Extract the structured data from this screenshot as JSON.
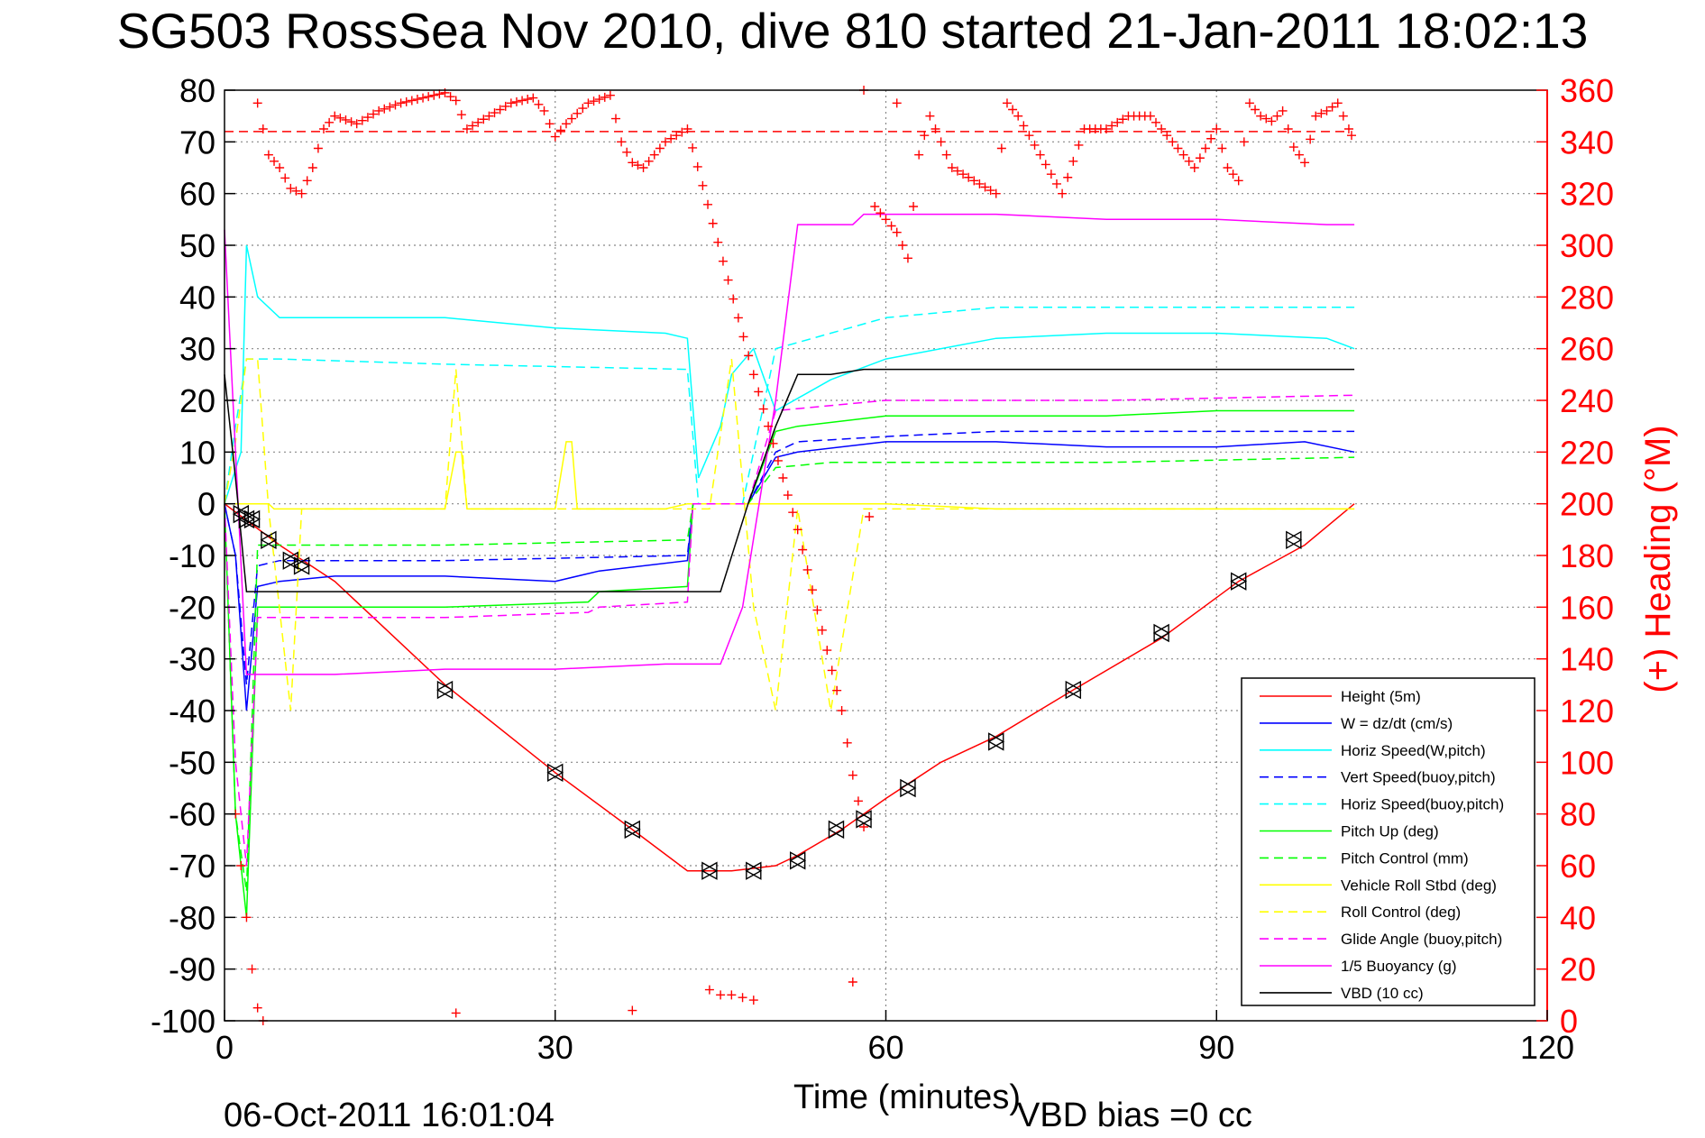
{
  "chart_data": {
    "type": "line",
    "title": "SG503 RossSea Nov 2010, dive 810 started 21-Jan-2011 18:02:13",
    "xlabel": "Time (minutes)",
    "ylabel": "",
    "y2label": "(+) Heading (°M)",
    "xlim": [
      0,
      120
    ],
    "ylim": [
      -100,
      80
    ],
    "y2lim": [
      0,
      360
    ],
    "x_ticks": [
      "0",
      "30",
      "60",
      "90",
      "120"
    ],
    "y_ticks": [
      "80",
      "70",
      "60",
      "50",
      "40",
      "30",
      "20",
      "10",
      "0",
      "-10",
      "-20",
      "-30",
      "-40",
      "-50",
      "-60",
      "-70",
      "-80",
      "-90",
      "-100"
    ],
    "y2_ticks": [
      "360",
      "340",
      "320",
      "300",
      "280",
      "260",
      "240",
      "220",
      "200",
      "180",
      "160",
      "140",
      "120",
      "100",
      "80",
      "60",
      "40",
      "20",
      "0"
    ],
    "grid": true,
    "legend_position": "bottom-right",
    "heading_target": 344,
    "series": [
      {
        "name": "Height (5m)",
        "color": "#ff0000",
        "style": "solid",
        "x": [
          0,
          5,
          10,
          20,
          30,
          37,
          42,
          46,
          50,
          52,
          56,
          60,
          65,
          70,
          77,
          85,
          92,
          98,
          102.5
        ],
        "y": [
          0,
          -8,
          -15,
          -35,
          -52,
          -63,
          -71,
          -71,
          -70,
          -68,
          -63,
          -57,
          -50,
          -45,
          -36,
          -26,
          -15,
          -8,
          0
        ]
      },
      {
        "name": "W = dz/dt (cm/s)",
        "color": "#0000ff",
        "style": "solid",
        "x": [
          0,
          1,
          2,
          3,
          5,
          10,
          20,
          30,
          34,
          42,
          42.5,
          47.5,
          50,
          52,
          60,
          70,
          80,
          90,
          98,
          102.5
        ],
        "y": [
          0,
          -10,
          -40,
          -16,
          -15,
          -14,
          -14,
          -15,
          -13,
          -11,
          0,
          0,
          9,
          10,
          12,
          12,
          11,
          11,
          12,
          10
        ]
      },
      {
        "name": "Horiz Speed(W,pitch)",
        "color": "#00ffff",
        "style": "solid",
        "x": [
          0,
          1.5,
          2,
          3,
          5,
          10,
          20,
          30,
          40,
          42,
          43,
          45,
          46,
          48,
          50,
          55,
          60,
          70,
          80,
          90,
          100,
          102.5
        ],
        "y": [
          0,
          10,
          50,
          40,
          36,
          36,
          36,
          34,
          33,
          32,
          5,
          15,
          25,
          30,
          18,
          24,
          28,
          32,
          33,
          33,
          32,
          30
        ]
      },
      {
        "name": "Vert Speed(buoy,pitch)",
        "color": "#0000ff",
        "style": "dashed",
        "x": [
          0,
          1,
          2,
          3,
          5,
          20,
          42,
          42.5,
          47.5,
          50,
          52,
          60,
          70,
          80,
          90,
          102.5
        ],
        "y": [
          0,
          -10,
          -35,
          -12,
          -11,
          -11,
          -10,
          0,
          0,
          10,
          12,
          13,
          14,
          14,
          14,
          14
        ]
      },
      {
        "name": "Horiz Speed(buoy,pitch)",
        "color": "#00ffff",
        "style": "dashed",
        "x": [
          0,
          1,
          2,
          3,
          5,
          20,
          42,
          43,
          47,
          50,
          60,
          70,
          80,
          90,
          102.5
        ],
        "y": [
          0,
          15,
          28,
          28,
          28,
          27,
          26,
          0,
          0,
          30,
          36,
          38,
          38,
          38,
          38
        ]
      },
      {
        "name": "Pitch Up (deg)",
        "color": "#00ff00",
        "style": "solid",
        "x": [
          0,
          1,
          2,
          3,
          5,
          20,
          33,
          34,
          42,
          42.5,
          47.5,
          50,
          52,
          60,
          70,
          80,
          90,
          102.5
        ],
        "y": [
          0,
          -60,
          -80,
          -20,
          -20,
          -20,
          -19,
          -17,
          -16,
          0,
          0,
          14,
          15,
          17,
          17,
          17,
          18,
          18
        ]
      },
      {
        "name": "Pitch Control (mm)",
        "color": "#00ff00",
        "style": "dashed",
        "x": [
          0,
          1,
          2,
          3,
          5,
          20,
          42,
          42.5,
          47.5,
          50,
          55,
          60,
          80,
          102.5
        ],
        "y": [
          0,
          -60,
          -75,
          -8,
          -8,
          -8,
          -7,
          0,
          0,
          7,
          8,
          8,
          8,
          9
        ]
      },
      {
        "name": "Vehicle Roll Stbd (deg)",
        "color": "#ffff00",
        "style": "solid",
        "x": [
          0,
          4,
          4.5,
          20,
          21,
          21.5,
          22,
          30,
          31,
          31.5,
          32,
          40,
          42,
          50,
          60,
          70,
          80,
          90,
          102.5
        ],
        "y": [
          0,
          0,
          -1,
          -1,
          10,
          10,
          -1,
          -1,
          12,
          12,
          -1,
          -1,
          0,
          0,
          0,
          -1,
          -1,
          -1,
          -1
        ]
      },
      {
        "name": "Roll Control (deg)",
        "color": "#ffff00",
        "style": "dashed",
        "x": [
          0,
          1,
          2,
          3,
          4,
          6,
          7,
          20,
          21,
          22,
          42,
          44,
          46,
          48,
          50,
          52,
          55,
          58,
          60,
          70,
          80,
          90,
          102.5
        ],
        "y": [
          0,
          12,
          28,
          28,
          -1,
          -40,
          -1,
          -1,
          26,
          -1,
          -1,
          -1,
          28,
          -20,
          -40,
          -1,
          -40,
          -1,
          -1,
          -1,
          -1,
          -1,
          -1
        ]
      },
      {
        "name": "Glide Angle (buoy,pitch)",
        "color": "#ff00ff",
        "style": "dashed",
        "x": [
          0,
          1,
          2,
          3,
          5,
          20,
          33,
          34,
          42,
          42.5,
          47.5,
          50,
          60,
          80,
          102.5
        ],
        "y": [
          0,
          -50,
          -70,
          -22,
          -22,
          -22,
          -21,
          -20,
          -19,
          0,
          0,
          18,
          20,
          20,
          21
        ]
      },
      {
        "name": "1/5 Buoyancy (g)",
        "color": "#ff00ff",
        "style": "solid",
        "x": [
          0,
          1,
          2,
          5,
          10,
          20,
          30,
          40,
          45,
          47,
          50,
          52,
          57,
          58,
          60,
          70,
          80,
          90,
          100,
          102.5
        ],
        "y": [
          53,
          10,
          -33,
          -33,
          -33,
          -32,
          -32,
          -31,
          -31,
          -20,
          20,
          54,
          54,
          56,
          56,
          56,
          55,
          55,
          54,
          54
        ]
      },
      {
        "name": "VBD (10 cc)",
        "color": "#000000",
        "style": "solid",
        "x": [
          0,
          1,
          2,
          3,
          10,
          20,
          30,
          42,
          45,
          47.5,
          50,
          52,
          55,
          58,
          60,
          70,
          80,
          90,
          102.5
        ],
        "y": [
          25,
          5,
          -17,
          -17,
          -17,
          -17,
          -17,
          -17,
          -17,
          0,
          15,
          25,
          25,
          26,
          26,
          26,
          26,
          26,
          26
        ]
      }
    ],
    "heading_points": {
      "name": "(+) Heading (°M)",
      "color": "#ff0000",
      "x": [
        3,
        4,
        5,
        6,
        7,
        8,
        9,
        10,
        12,
        14,
        16,
        18,
        20,
        21,
        22,
        24,
        26,
        28,
        29,
        30,
        31,
        33,
        35,
        36,
        37,
        38,
        40,
        42,
        48,
        52,
        56,
        57,
        58,
        59,
        60,
        61,
        62,
        63,
        64,
        65,
        66,
        68,
        70,
        71,
        72,
        74,
        76,
        78,
        80,
        82,
        84,
        86,
        88,
        90,
        91,
        92,
        93,
        94,
        95,
        96,
        97,
        98,
        99,
        100,
        101,
        102,
        102.5
      ],
      "y": [
        355,
        335,
        330,
        322,
        320,
        330,
        345,
        350,
        347,
        352,
        355,
        357,
        359,
        356,
        345,
        350,
        355,
        357,
        352,
        342,
        347,
        355,
        358,
        340,
        332,
        330,
        340,
        345,
        250,
        190,
        120,
        95,
        75,
        315,
        310,
        305,
        295,
        335,
        350,
        340,
        330,
        325,
        320,
        355,
        350,
        335,
        320,
        345,
        345,
        350,
        350,
        340,
        330,
        345,
        330,
        325,
        355,
        350,
        348,
        352,
        338,
        332,
        350,
        352,
        355,
        345,
        340
      ]
    },
    "heading_scatter": {
      "x": [
        1,
        1.5,
        2,
        2.5,
        3,
        3.5,
        44,
        45,
        46,
        47,
        48,
        21,
        37,
        57,
        58,
        61
      ],
      "y": [
        80,
        60,
        40,
        20,
        5,
        0,
        12,
        10,
        10,
        9,
        8,
        3,
        4,
        15,
        360,
        355
      ]
    },
    "markers": {
      "x": [
        1.5,
        2,
        2.5,
        4,
        6,
        7,
        20,
        30,
        37,
        44,
        48,
        52,
        55.5,
        58,
        62,
        70,
        77,
        85,
        92,
        97
      ],
      "y": [
        -2,
        -3,
        -3,
        -7,
        -11,
        -12,
        -36,
        -52,
        -63,
        -71,
        -71,
        -69,
        -63,
        -61,
        -55,
        -46,
        -36,
        -25,
        -15,
        -7
      ]
    }
  },
  "footer": {
    "timestamp": "06-Oct-2011 16:01:04",
    "vbd_bias": "VBD bias =0 cc"
  }
}
